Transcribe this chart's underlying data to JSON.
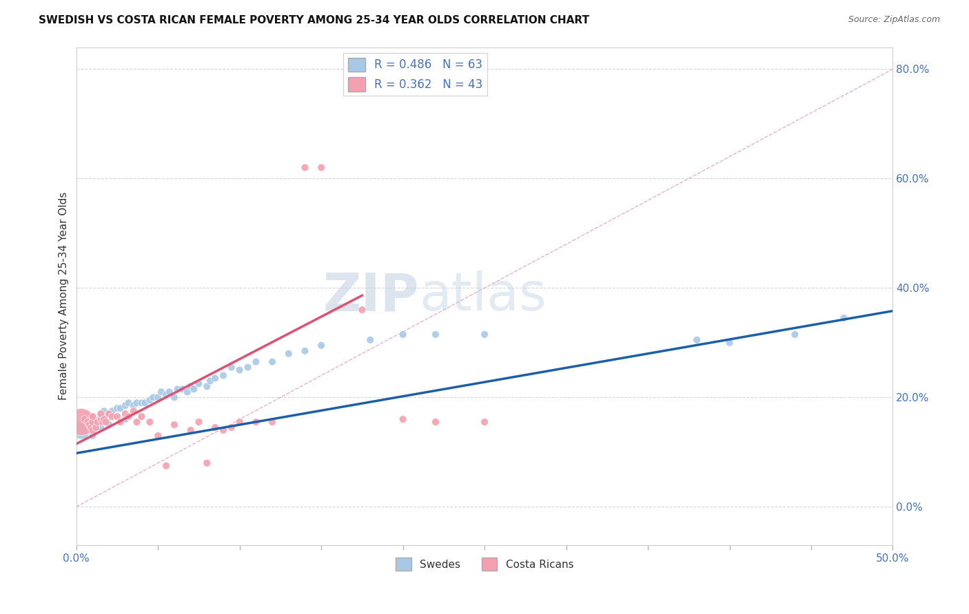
{
  "title": "SWEDISH VS COSTA RICAN FEMALE POVERTY AMONG 25-34 YEAR OLDS CORRELATION CHART",
  "source": "Source: ZipAtlas.com",
  "ylabel": "Female Poverty Among 25-34 Year Olds",
  "xlim": [
    0.0,
    0.5
  ],
  "ylim": [
    -0.07,
    0.84
  ],
  "xticks": [
    0.0,
    0.05,
    0.1,
    0.15,
    0.2,
    0.25,
    0.3,
    0.35,
    0.4,
    0.45,
    0.5
  ],
  "yticks": [
    0.0,
    0.2,
    0.4,
    0.6,
    0.8
  ],
  "blue_color": "#a8c8e8",
  "pink_color": "#f4a0b0",
  "blue_line_color": "#1a5fa8",
  "pink_line_color": "#e05070",
  "ref_line_color": "#e0a0b0",
  "grid_color": "#cccccc",
  "watermark_zip": "ZIP",
  "watermark_atlas": "atlas",
  "legend_R_blue": "R = 0.486",
  "legend_N_blue": "N = 63",
  "legend_R_pink": "R = 0.362",
  "legend_N_pink": "N = 43",
  "swedes_label": "Swedes",
  "costa_ricans_label": "Costa Ricans",
  "blue_slope": 0.52,
  "blue_intercept": 0.098,
  "pink_slope": 1.55,
  "pink_intercept": 0.115,
  "pink_line_x_max": 0.175,
  "swedes_x": [
    0.003,
    0.005,
    0.007,
    0.008,
    0.009,
    0.01,
    0.01,
    0.01,
    0.012,
    0.013,
    0.013,
    0.014,
    0.015,
    0.015,
    0.016,
    0.017,
    0.018,
    0.019,
    0.02,
    0.02,
    0.022,
    0.025,
    0.027,
    0.03,
    0.03,
    0.032,
    0.035,
    0.037,
    0.04,
    0.042,
    0.045,
    0.047,
    0.05,
    0.052,
    0.055,
    0.057,
    0.06,
    0.062,
    0.065,
    0.068,
    0.07,
    0.072,
    0.075,
    0.08,
    0.082,
    0.085,
    0.09,
    0.095,
    0.1,
    0.105,
    0.11,
    0.12,
    0.13,
    0.14,
    0.15,
    0.18,
    0.2,
    0.22,
    0.25,
    0.38,
    0.4,
    0.44,
    0.47
  ],
  "swedes_y": [
    0.14,
    0.16,
    0.155,
    0.15,
    0.145,
    0.13,
    0.155,
    0.165,
    0.145,
    0.15,
    0.155,
    0.16,
    0.145,
    0.17,
    0.155,
    0.175,
    0.165,
    0.155,
    0.17,
    0.15,
    0.175,
    0.18,
    0.18,
    0.16,
    0.185,
    0.19,
    0.185,
    0.19,
    0.19,
    0.19,
    0.195,
    0.2,
    0.2,
    0.21,
    0.205,
    0.21,
    0.2,
    0.215,
    0.215,
    0.21,
    0.22,
    0.215,
    0.225,
    0.22,
    0.23,
    0.235,
    0.24,
    0.255,
    0.25,
    0.255,
    0.265,
    0.265,
    0.28,
    0.285,
    0.295,
    0.305,
    0.315,
    0.315,
    0.315,
    0.305,
    0.3,
    0.315,
    0.345
  ],
  "swedes_sizes": [
    350,
    60,
    60,
    60,
    60,
    60,
    60,
    60,
    60,
    60,
    60,
    60,
    60,
    60,
    60,
    60,
    60,
    60,
    60,
    60,
    60,
    60,
    60,
    60,
    60,
    60,
    60,
    60,
    60,
    60,
    60,
    60,
    60,
    60,
    60,
    60,
    60,
    60,
    60,
    60,
    60,
    60,
    60,
    60,
    60,
    60,
    60,
    60,
    60,
    60,
    60,
    60,
    60,
    60,
    60,
    60,
    60,
    60,
    60,
    60,
    60,
    60,
    60
  ],
  "costa_ricans_x": [
    0.003,
    0.005,
    0.007,
    0.008,
    0.009,
    0.01,
    0.01,
    0.01,
    0.012,
    0.013,
    0.015,
    0.015,
    0.016,
    0.017,
    0.018,
    0.02,
    0.022,
    0.025,
    0.027,
    0.03,
    0.032,
    0.035,
    0.037,
    0.04,
    0.045,
    0.05,
    0.055,
    0.06,
    0.07,
    0.075,
    0.08,
    0.085,
    0.09,
    0.095,
    0.1,
    0.11,
    0.12,
    0.14,
    0.15,
    0.175,
    0.2,
    0.22,
    0.25
  ],
  "costa_ricans_y": [
    0.155,
    0.16,
    0.155,
    0.15,
    0.145,
    0.14,
    0.155,
    0.165,
    0.145,
    0.155,
    0.16,
    0.17,
    0.155,
    0.16,
    0.155,
    0.17,
    0.165,
    0.165,
    0.155,
    0.17,
    0.165,
    0.175,
    0.155,
    0.165,
    0.155,
    0.13,
    0.075,
    0.15,
    0.14,
    0.155,
    0.08,
    0.145,
    0.14,
    0.145,
    0.155,
    0.155,
    0.155,
    0.62,
    0.62,
    0.36,
    0.16,
    0.155,
    0.155
  ],
  "costa_ricans_sizes": [
    800,
    60,
    60,
    60,
    60,
    60,
    60,
    60,
    60,
    60,
    60,
    60,
    60,
    60,
    60,
    60,
    60,
    60,
    60,
    60,
    60,
    60,
    60,
    60,
    60,
    60,
    60,
    60,
    60,
    60,
    60,
    60,
    60,
    60,
    60,
    60,
    60,
    60,
    60,
    60,
    60,
    60,
    60
  ]
}
